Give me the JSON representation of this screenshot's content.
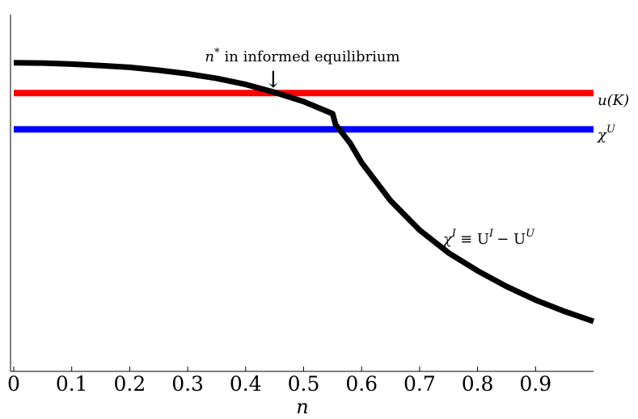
{
  "chart_data": {
    "type": "line",
    "xlabel": "n",
    "ylabel": "",
    "xlim": [
      0,
      1
    ],
    "ylim": [
      0,
      1
    ],
    "x_ticks": [
      "0",
      "0.1",
      "0.2",
      "0.3",
      "0.4",
      "0.5",
      "0.6",
      "0.7",
      "0.8",
      "0.9"
    ],
    "x_tick_values": [
      0,
      0.1,
      0.2,
      0.3,
      0.4,
      0.5,
      0.6,
      0.7,
      0.8,
      0.9
    ],
    "series": [
      {
        "label": {
          "main": "u(K)"
        },
        "color": "#ff0000",
        "x": [
          0,
          1
        ],
        "y": [
          0.78,
          0.78
        ]
      },
      {
        "label": {
          "main": "χ",
          "sup": "U"
        },
        "color": "#0000ff",
        "x": [
          0,
          1
        ],
        "y": [
          0.678,
          0.678
        ]
      },
      {
        "label": {
          "main": "χ",
          "sup": "I",
          "rest": "≡ U",
          "sup2": "I",
          "rest2": "− U",
          "sup3": "U"
        },
        "color": "#000000",
        "x": [
          0,
          0.05,
          0.1,
          0.15,
          0.2,
          0.25,
          0.3,
          0.35,
          0.4,
          0.45,
          0.5,
          0.55,
          0.555,
          0.58,
          0.6,
          0.65,
          0.7,
          0.75,
          0.8,
          0.85,
          0.9,
          0.95,
          1.0
        ],
        "y": [
          0.865,
          0.864,
          0.861,
          0.857,
          0.852,
          0.844,
          0.834,
          0.821,
          0.804,
          0.782,
          0.756,
          0.722,
          0.692,
          0.64,
          0.585,
          0.478,
          0.396,
          0.332,
          0.282,
          0.238,
          0.2,
          0.168,
          0.14
        ]
      }
    ],
    "annotation": {
      "text_sym": "n",
      "text_sup": "*",
      "text_rest": "in informed equilibrium",
      "arrow_glyph": "↓",
      "x": 0.45,
      "y": 0.78
    },
    "grid": false,
    "legend": "none"
  }
}
